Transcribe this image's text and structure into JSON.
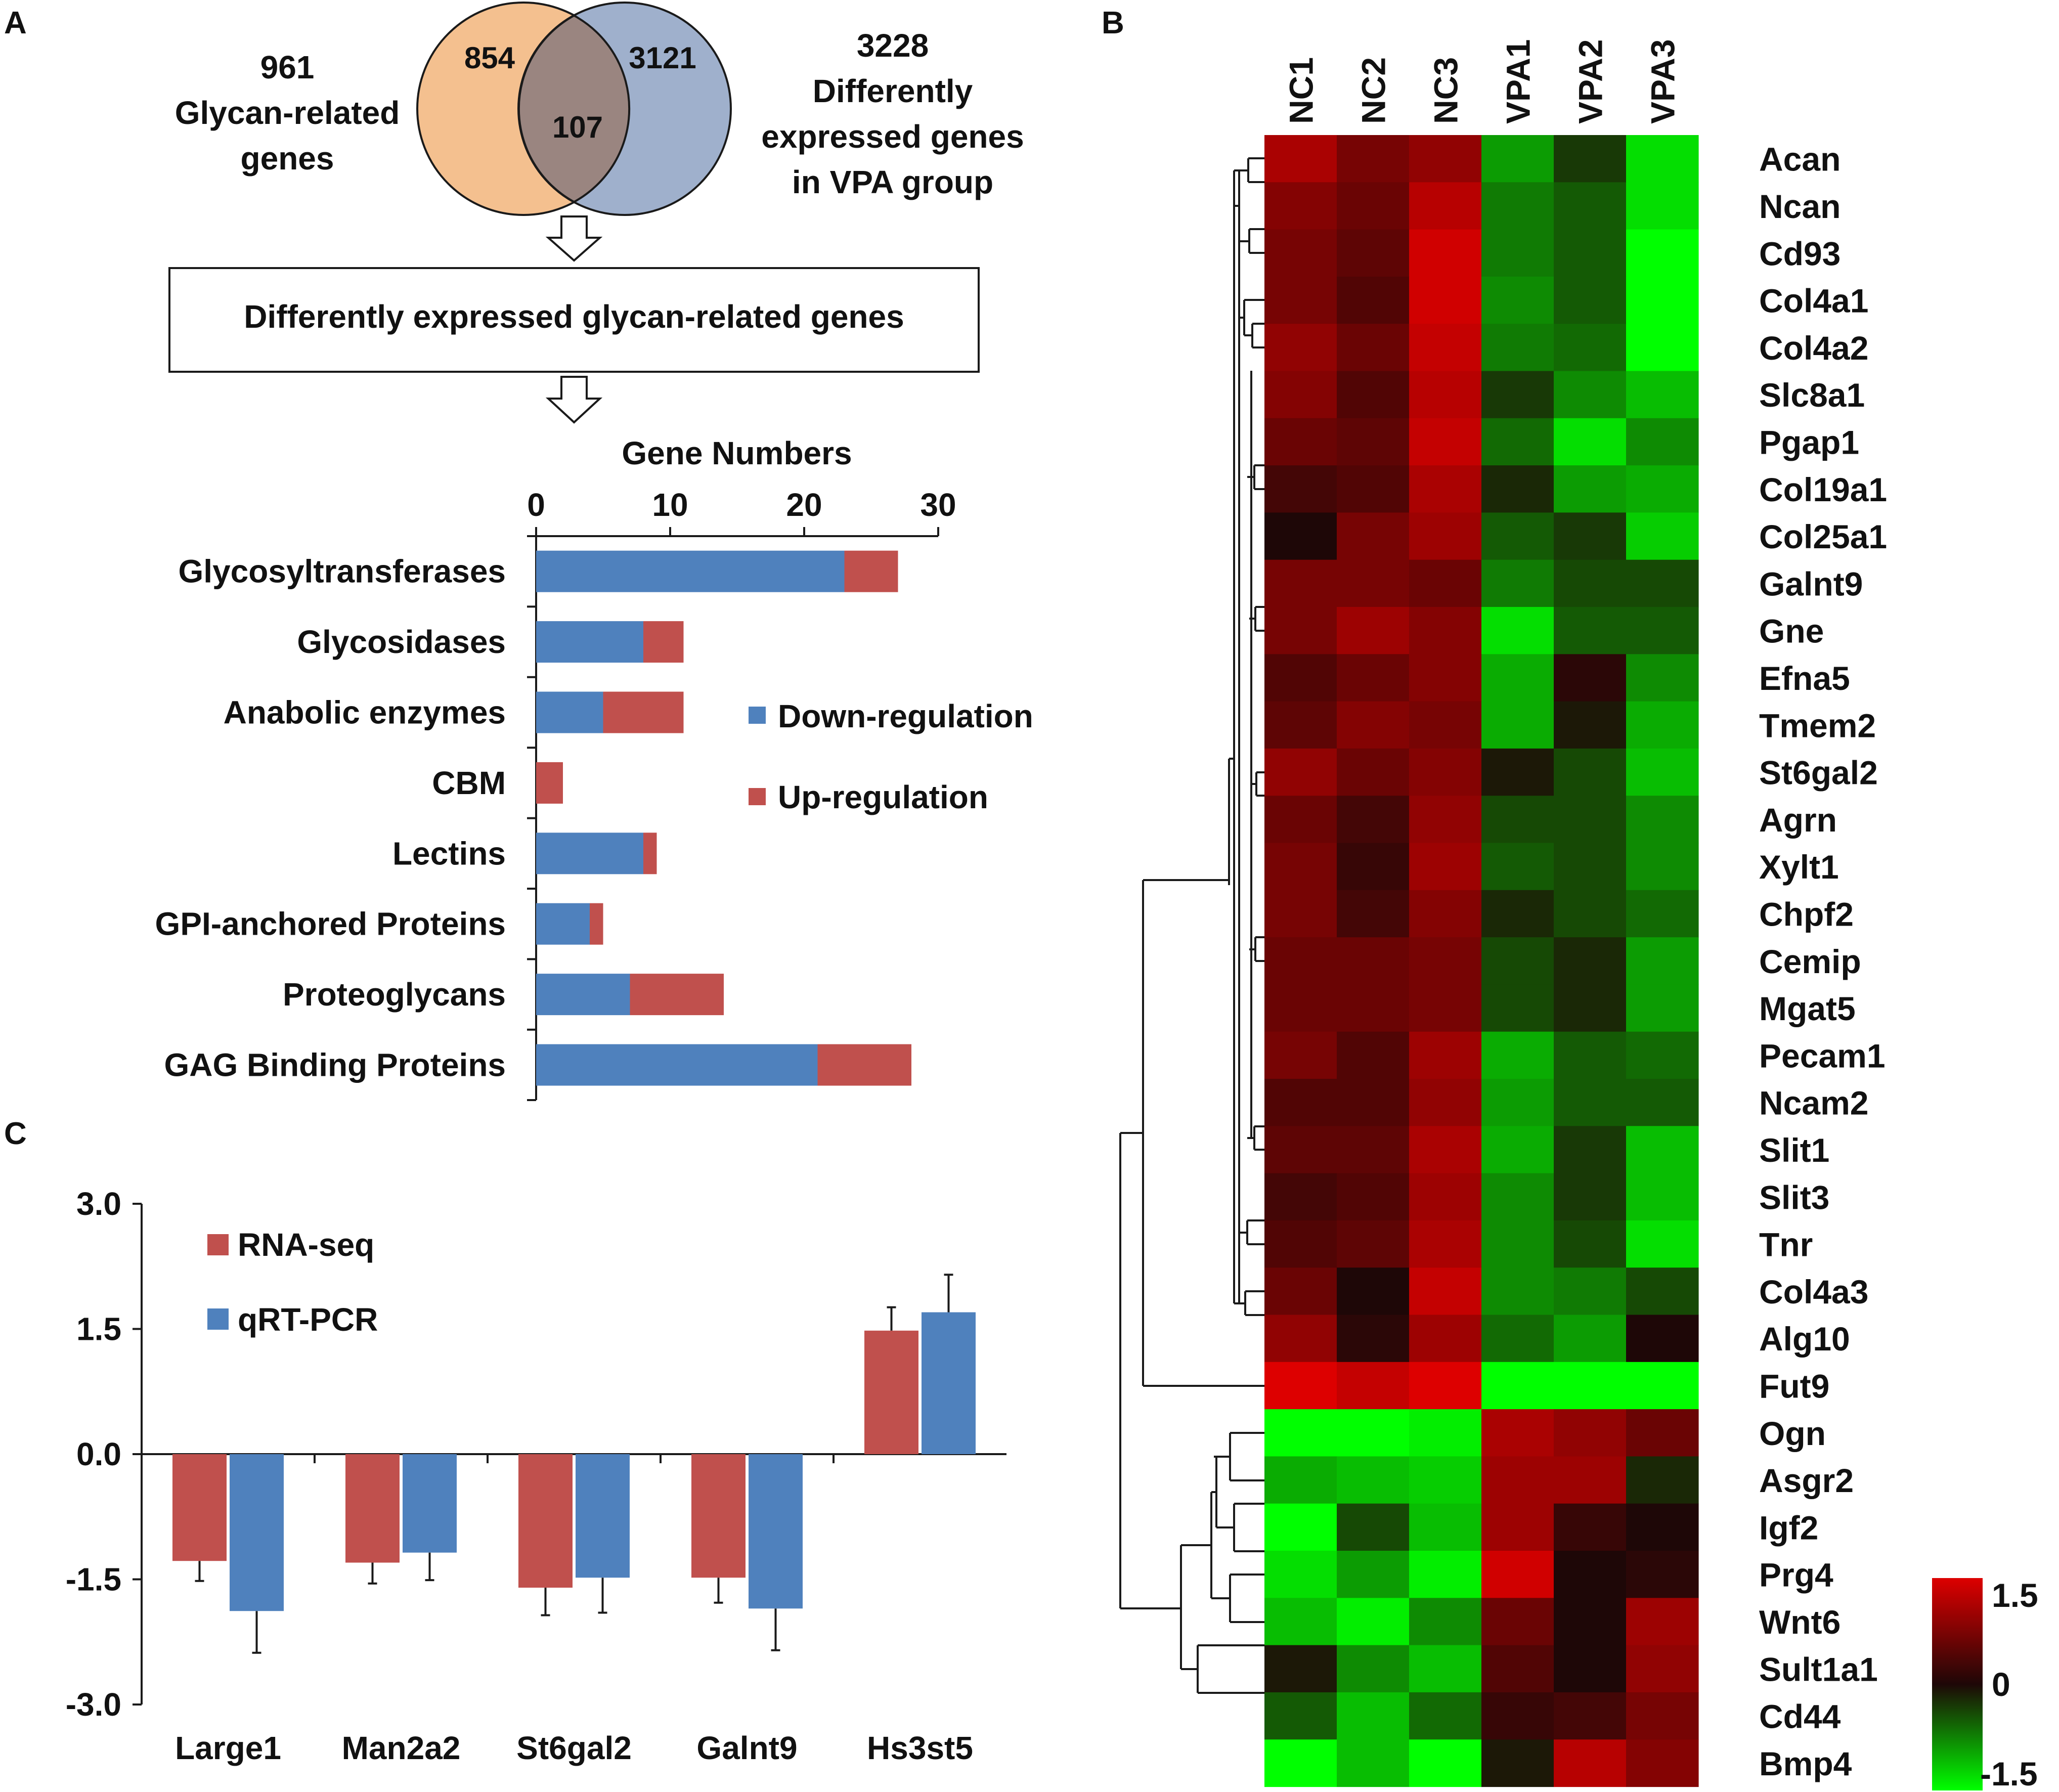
{
  "colors": {
    "down": "#4f81bd",
    "up": "#c0504d",
    "rna": "#c0504d",
    "qpcr": "#4f81bd",
    "venn_left": "#f4c08f",
    "venn_right": "#9fb0cc",
    "venn_overlap": "#9a8580",
    "high": "#dd0000",
    "mid": "#1e0707",
    "low": "#00ff00"
  },
  "panels": {
    "a": "A",
    "b": "B",
    "c": "C"
  },
  "venn": {
    "left_only": "854",
    "overlap": "107",
    "right_only": "3121",
    "left_label": [
      "961",
      "Glycan-related",
      "genes"
    ],
    "right_label": [
      "3228",
      "Differently",
      "expressed genes",
      "in VPA group"
    ],
    "box_text": "Differently expressed glycan-related genes"
  },
  "chart_data": [
    {
      "type": "bar",
      "orientation": "horizontal",
      "stacked": true,
      "title": "Gene Numbers",
      "categories": [
        "Glycosyltransferases",
        "Glycosidases",
        "Anabolic enzymes",
        "CBM",
        "Lectins",
        "GPI-anchored Proteins",
        "Proteoglycans",
        "GAG Binding Proteins"
      ],
      "series": [
        {
          "name": "Down-regulation",
          "values": [
            23,
            8,
            5,
            0,
            8,
            4,
            7,
            21
          ]
        },
        {
          "name": "Up-regulation",
          "values": [
            4,
            3,
            6,
            2,
            1,
            1,
            7,
            7
          ]
        }
      ],
      "xlim": [
        0,
        30
      ],
      "xticks": [
        "0",
        "10",
        "20",
        "30"
      ],
      "legend": "right"
    },
    {
      "type": "heatmap",
      "columns": [
        "NC1",
        "NC2",
        "NC3",
        "VPA1",
        "VPA2",
        "VPA3"
      ],
      "rows": [
        "Acan",
        "Ncan",
        "Cd93",
        "Col4a1",
        "Col4a2",
        "Slc8a1",
        "Pgap1",
        "Col19a1",
        "Col25a1",
        "Galnt9",
        "Gne",
        "Efna5",
        "Tmem2",
        "St6gal2",
        "Agrn",
        "Xylt1",
        "Chpf2",
        "Cemip",
        "Mgat5",
        "Pecam1",
        "Ncam2",
        "Slit1",
        "Slit3",
        "Tnr",
        "Col4a3",
        "Alg10",
        "Fut9",
        "Ogn",
        "Asgr2",
        "Igf2",
        "Prg4",
        "Wnt6",
        "Sult1a1",
        "Cd44",
        "Bmp4"
      ],
      "values": [
        [
          1.1,
          0.7,
          0.9,
          -0.9,
          -0.3,
          -1.3
        ],
        [
          0.8,
          0.6,
          1.2,
          -0.7,
          -0.5,
          -1.3
        ],
        [
          0.7,
          0.5,
          1.4,
          -0.7,
          -0.5,
          -1.5
        ],
        [
          0.7,
          0.4,
          1.4,
          -0.8,
          -0.5,
          -1.5
        ],
        [
          0.9,
          0.6,
          1.3,
          -0.7,
          -0.6,
          -1.5
        ],
        [
          0.8,
          0.4,
          1.2,
          -0.3,
          -0.8,
          -1.1
        ],
        [
          0.6,
          0.5,
          1.3,
          -0.6,
          -1.3,
          -0.8
        ],
        [
          0.3,
          0.4,
          1.1,
          -0.2,
          -0.9,
          -1.0
        ],
        [
          0.0,
          0.7,
          1.0,
          -0.5,
          -0.3,
          -1.2
        ],
        [
          0.7,
          0.7,
          0.6,
          -0.7,
          -0.4,
          -0.4
        ],
        [
          0.7,
          1.0,
          0.8,
          -1.3,
          -0.5,
          -0.5
        ],
        [
          0.4,
          0.6,
          0.8,
          -1.0,
          0.1,
          -0.8
        ],
        [
          0.5,
          0.8,
          0.7,
          -1.0,
          -0.1,
          -1.0
        ],
        [
          0.9,
          0.6,
          0.8,
          -0.1,
          -0.4,
          -1.1
        ],
        [
          0.6,
          0.3,
          0.9,
          -0.4,
          -0.4,
          -0.8
        ],
        [
          0.7,
          0.2,
          1.0,
          -0.5,
          -0.4,
          -0.8
        ],
        [
          0.7,
          0.3,
          0.8,
          -0.2,
          -0.4,
          -0.6
        ],
        [
          0.6,
          0.6,
          0.7,
          -0.4,
          -0.2,
          -0.9
        ],
        [
          0.6,
          0.6,
          0.7,
          -0.4,
          -0.2,
          -0.9
        ],
        [
          0.7,
          0.4,
          1.0,
          -1.0,
          -0.5,
          -0.6
        ],
        [
          0.4,
          0.4,
          0.9,
          -0.9,
          -0.5,
          -0.5
        ],
        [
          0.5,
          0.5,
          1.1,
          -1.0,
          -0.3,
          -1.1
        ],
        [
          0.3,
          0.4,
          1.0,
          -0.8,
          -0.3,
          -1.1
        ],
        [
          0.4,
          0.5,
          1.1,
          -0.8,
          -0.4,
          -1.3
        ],
        [
          0.6,
          0.0,
          1.3,
          -0.8,
          -0.7,
          -0.4
        ],
        [
          0.9,
          0.1,
          1.0,
          -0.6,
          -0.9,
          0.0
        ],
        [
          1.5,
          1.3,
          1.5,
          -1.5,
          -1.5,
          -1.5
        ],
        [
          -1.5,
          -1.5,
          -1.4,
          1.1,
          0.9,
          0.6
        ],
        [
          -1.0,
          -1.1,
          -1.2,
          1.0,
          1.0,
          -0.2
        ],
        [
          -1.5,
          -0.4,
          -1.1,
          1.0,
          0.2,
          0.0
        ],
        [
          -1.3,
          -0.9,
          -1.4,
          1.4,
          0.0,
          0.1
        ],
        [
          -1.1,
          -1.4,
          -0.8,
          0.6,
          0.0,
          1.0
        ],
        [
          -0.1,
          -0.8,
          -1.1,
          0.4,
          0.0,
          0.9
        ],
        [
          -0.5,
          -1.1,
          -0.6,
          0.2,
          0.3,
          0.7
        ],
        [
          -1.5,
          -1.1,
          -1.5,
          -0.1,
          1.2,
          0.8
        ]
      ],
      "colorbar": {
        "ticks": [
          "1.5",
          "0",
          "-1.5"
        ],
        "range": [
          -1.5,
          1.5
        ]
      }
    },
    {
      "type": "bar",
      "grouped": true,
      "categories": [
        "Large1",
        "Man2a2",
        "St6gal2",
        "Galnt9",
        "Hs3st5"
      ],
      "series": [
        {
          "name": "RNA-seq",
          "values": [
            -1.28,
            -1.3,
            -1.6,
            -1.48,
            1.48
          ],
          "errors": [
            0.24,
            0.25,
            0.33,
            0.3,
            0.28
          ]
        },
        {
          "name": "qRT-PCR",
          "values": [
            -1.88,
            -1.18,
            -1.48,
            -1.85,
            1.7
          ],
          "errors": [
            0.5,
            0.33,
            0.42,
            0.5,
            0.45
          ]
        }
      ],
      "ylim": [
        -3,
        3
      ],
      "yticks": [
        "3.0",
        "1.5",
        "0.0",
        "-1.5",
        "-3.0"
      ],
      "legend": "top-left"
    }
  ]
}
